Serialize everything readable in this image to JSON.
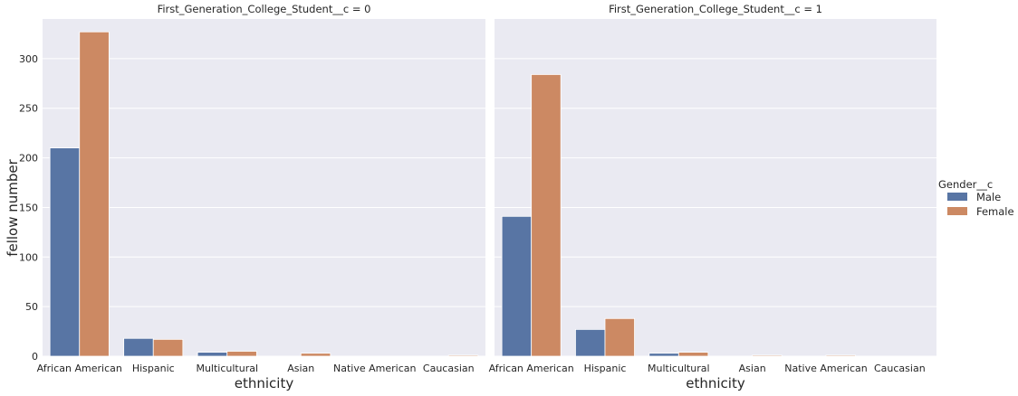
{
  "chart_data": {
    "type": "bar",
    "facet_variable": "First_Generation_College_Student__c",
    "categories": [
      "African American",
      "Hispanic",
      "Multicultural",
      "Asian",
      "Native American",
      "Caucasian"
    ],
    "xlabel": "ethnicity",
    "ylabel": "fellow number",
    "ylim": [
      0,
      340
    ],
    "yticks": [
      0,
      50,
      100,
      150,
      200,
      250,
      300
    ],
    "grid": true,
    "legend": {
      "title": "Gender__c",
      "placement": "right",
      "entries": [
        "Male",
        "Female"
      ]
    },
    "colors": {
      "Male": "#5875a4",
      "Female": "#cc8963",
      "panel_bg": "#eaeaf2",
      "grid": "#ffffff"
    },
    "panels": [
      {
        "title": "First_Generation_College_Student__c = 0",
        "series": [
          {
            "name": "Male",
            "values": [
              210,
              18,
              4,
              0,
              0,
              0
            ]
          },
          {
            "name": "Female",
            "values": [
              327,
              17,
              5,
              3,
              0,
              1
            ]
          }
        ]
      },
      {
        "title": "First_Generation_College_Student__c = 1",
        "series": [
          {
            "name": "Male",
            "values": [
              141,
              27,
              3,
              0,
              0,
              0
            ]
          },
          {
            "name": "Female",
            "values": [
              284,
              38,
              4,
              1,
              1,
              0
            ]
          }
        ]
      }
    ]
  }
}
